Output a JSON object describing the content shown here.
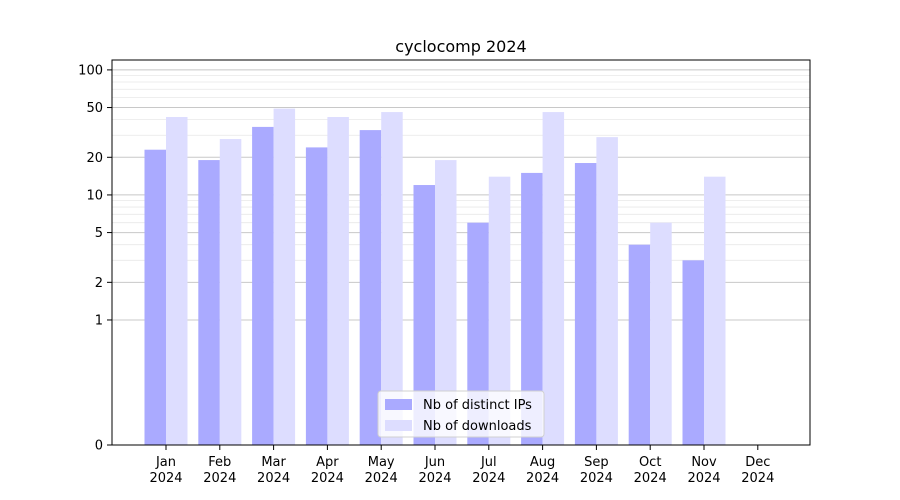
{
  "chart_data": {
    "type": "bar",
    "title": "cyclocomp 2024",
    "xlabel": "",
    "ylabel": "",
    "y_scale": "symlog",
    "y_ticks": [
      0,
      1,
      2,
      5,
      10,
      20,
      50,
      100
    ],
    "ylim": [
      0,
      120
    ],
    "grid": "horizontal",
    "legend_position": "bottom-center",
    "categories": [
      "Jan\n2024",
      "Feb\n2024",
      "Mar\n2024",
      "Apr\n2024",
      "May\n2024",
      "Jun\n2024",
      "Jul\n2024",
      "Aug\n2024",
      "Sep\n2024",
      "Oct\n2024",
      "Nov\n2024",
      "Dec\n2024"
    ],
    "series": [
      {
        "name": "Nb of distinct IPs",
        "color": "#aaaaff",
        "values": [
          23,
          19,
          35,
          24,
          33,
          12,
          6,
          15,
          18,
          4,
          3,
          0
        ]
      },
      {
        "name": "Nb of downloads",
        "color": "#ddddff",
        "values": [
          42,
          28,
          49,
          42,
          46,
          19,
          14,
          46,
          29,
          6,
          14,
          0
        ]
      }
    ]
  }
}
